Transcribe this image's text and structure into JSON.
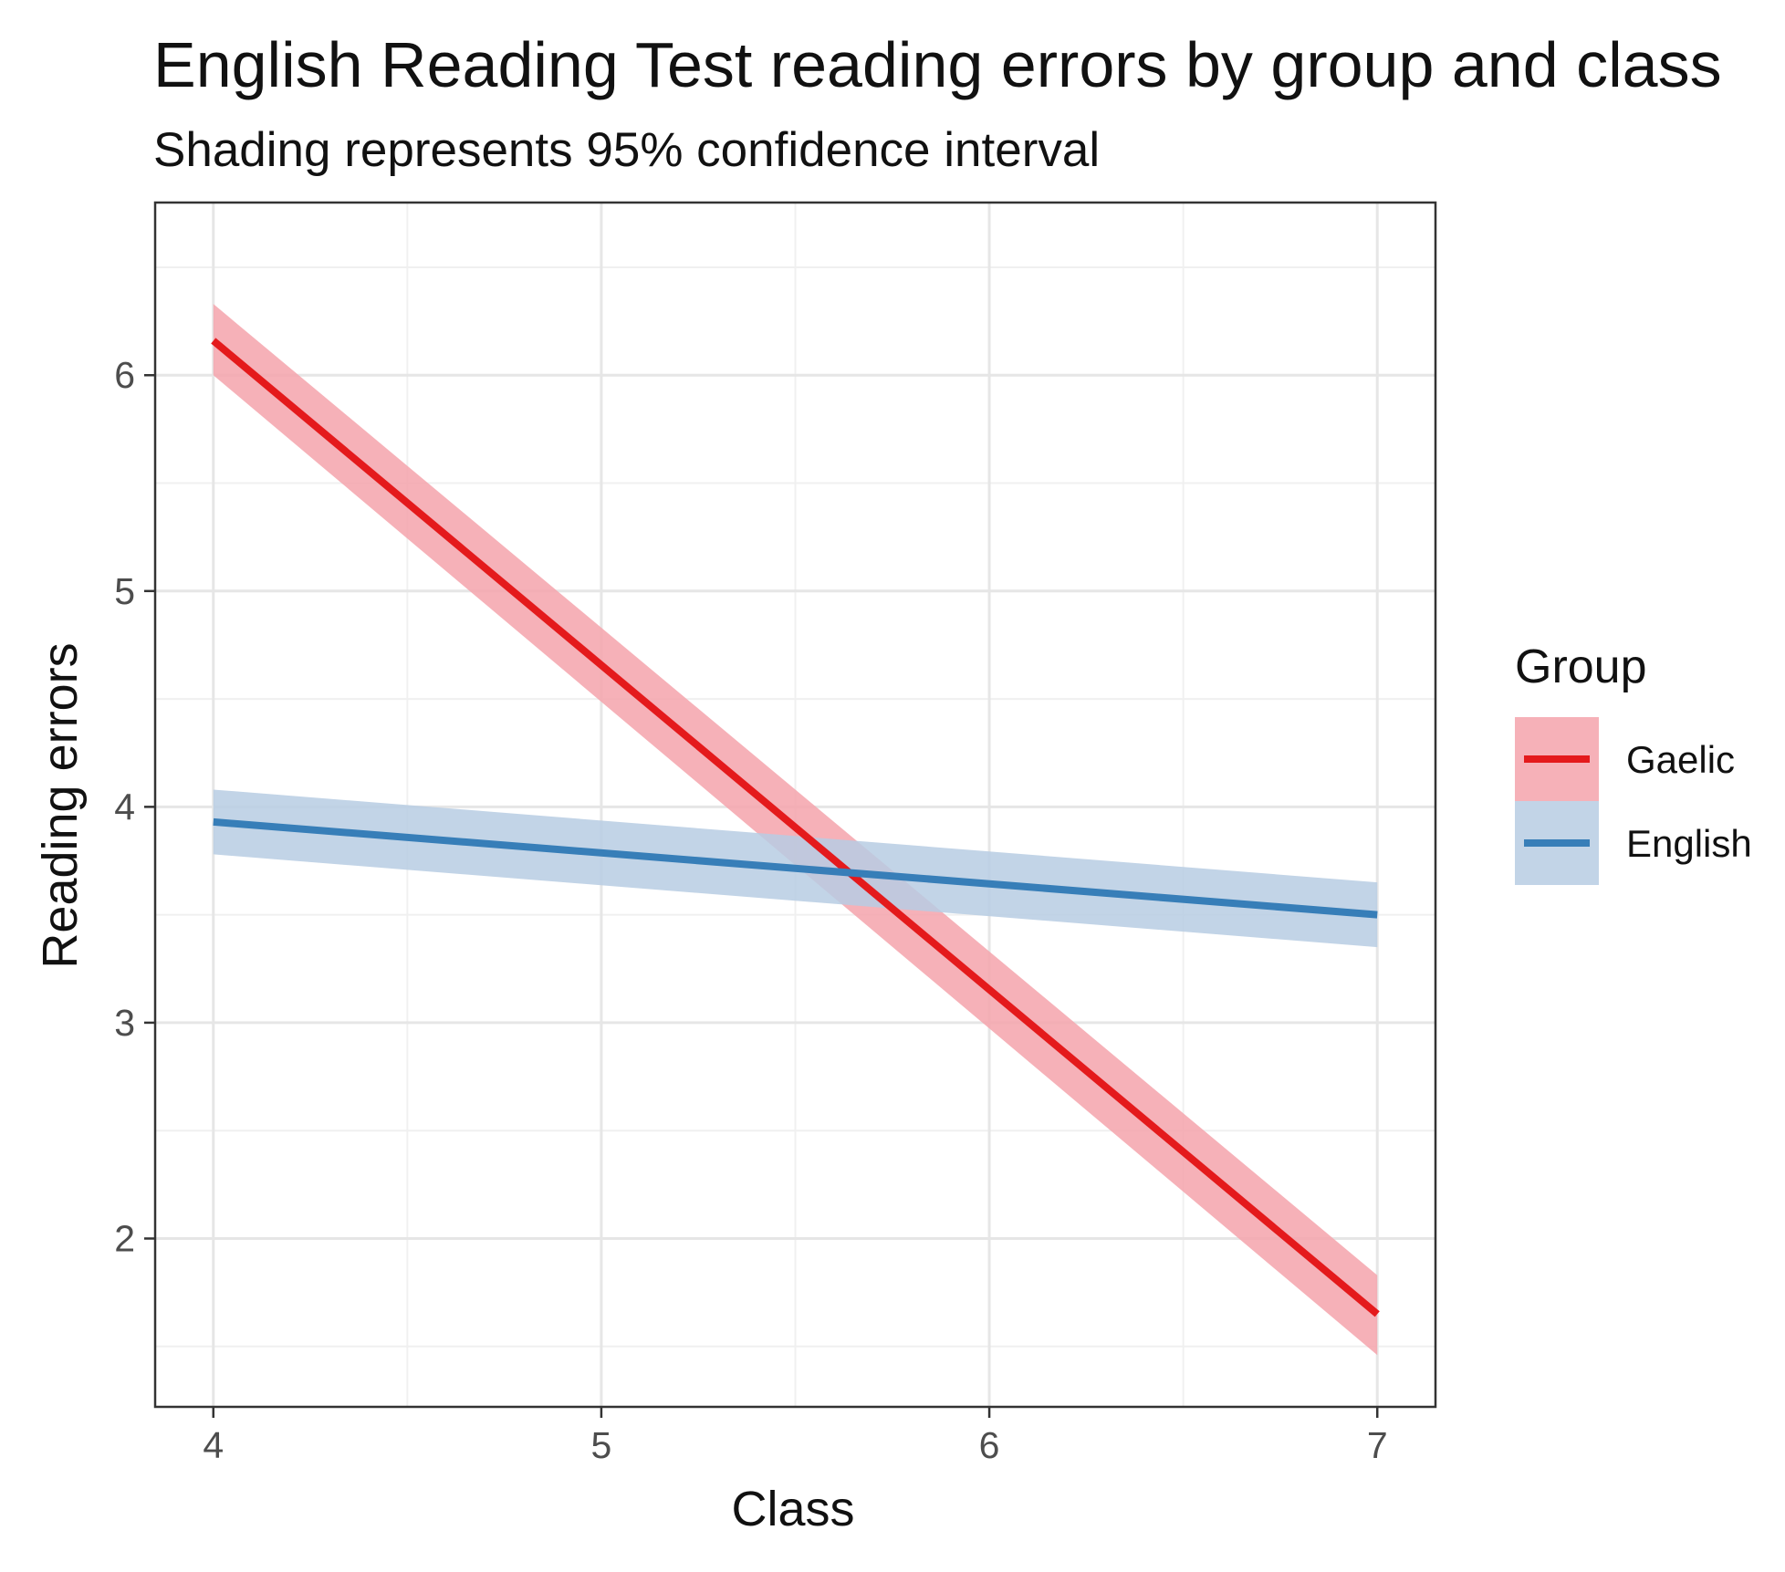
{
  "chart_data": {
    "type": "line",
    "title": "English Reading Test reading errors by group and class",
    "subtitle": "Shading represents 95% confidence interval",
    "xlabel": "Class",
    "ylabel": "Reading errors",
    "xlim": [
      3.85,
      7.15
    ],
    "ylim": [
      1.22,
      6.8
    ],
    "x_ticks": [
      4,
      5,
      6,
      7
    ],
    "y_ticks": [
      2,
      3,
      4,
      5,
      6
    ],
    "grid": true,
    "legend": {
      "title": "Group",
      "position": "right"
    },
    "series": [
      {
        "name": "Gaelic",
        "color": "#e41a1c",
        "band_color": "#f4a3ab",
        "x": [
          4,
          7
        ],
        "values": [
          6.16,
          1.65
        ],
        "ci_lower": [
          6.0,
          1.46
        ],
        "ci_upper": [
          6.33,
          1.83
        ]
      },
      {
        "name": "English",
        "color": "#377eb8",
        "band_color": "#b7cde3",
        "x": [
          4,
          7
        ],
        "values": [
          3.93,
          3.5
        ],
        "ci_lower": [
          3.78,
          3.35
        ],
        "ci_upper": [
          4.08,
          3.65
        ]
      }
    ]
  }
}
